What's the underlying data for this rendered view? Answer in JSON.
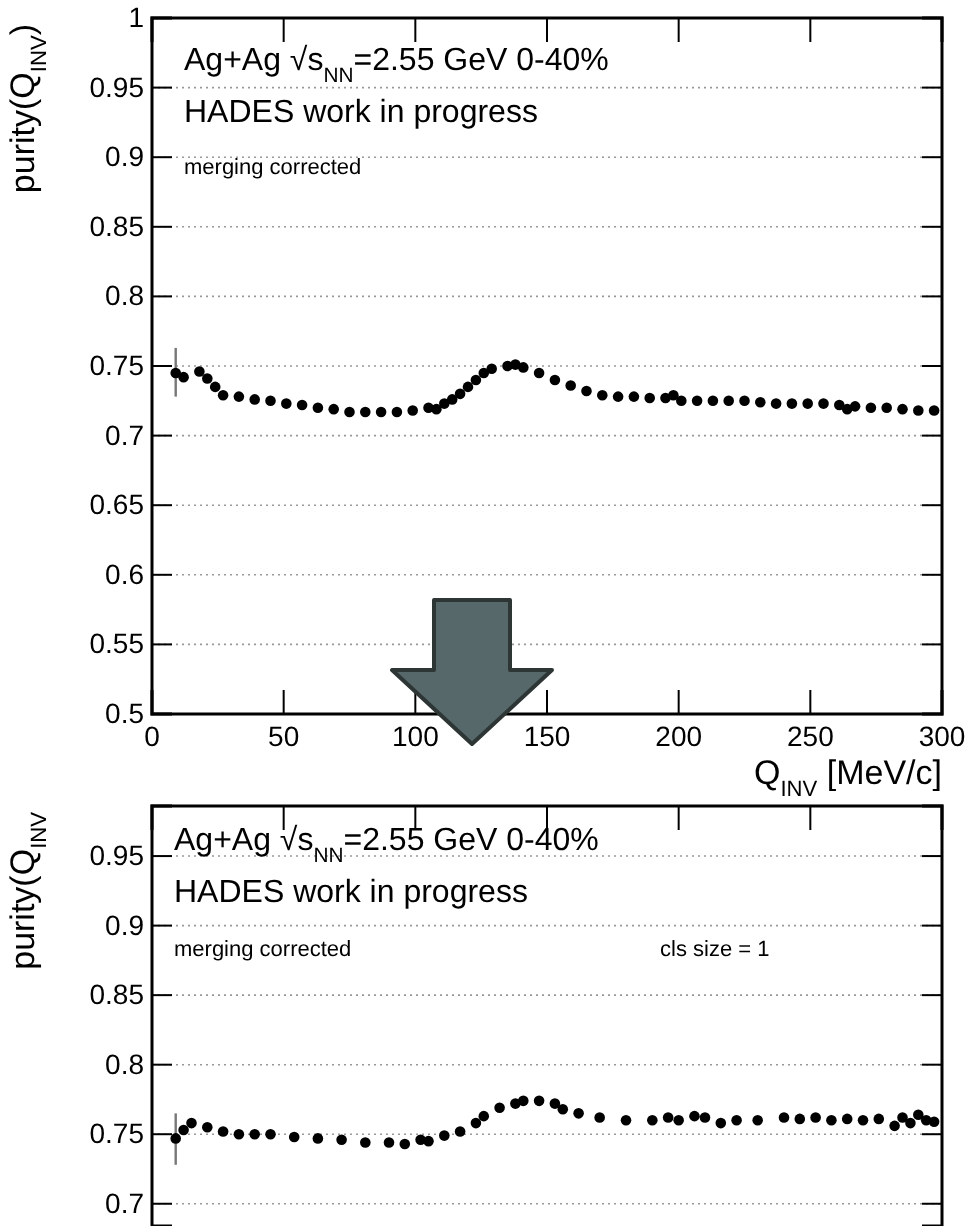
{
  "chart_data": [
    {
      "type": "scatter",
      "ylabel": "purity(Q$_{INV}$)",
      "xlabel": "Q$_{INV}$ [MeV/c]",
      "annotations": [
        "Ag+Ag √s$_{NN}$=2.55 GeV 0-40%",
        "HADES work in progress",
        "merging corrected"
      ],
      "xlim": [
        0,
        300
      ],
      "xticks": [
        0,
        50,
        100,
        150,
        200,
        250,
        300
      ],
      "ylim": [
        0.5,
        1
      ],
      "yticks": [
        0.5,
        0.55,
        0.6,
        0.65,
        0.7,
        0.75,
        0.8,
        0.85,
        0.9,
        0.95,
        1
      ],
      "grid": "y",
      "marker": "circle",
      "series": [
        {
          "color": "#000000",
          "x": [
            9,
            12,
            18,
            21,
            24,
            27,
            33,
            39,
            45,
            51,
            57,
            63,
            69,
            75,
            81,
            87,
            93,
            99,
            105,
            108,
            111,
            114,
            117,
            120,
            123,
            126,
            129,
            135,
            138,
            141,
            147,
            153,
            159,
            165,
            171,
            177,
            183,
            189,
            195,
            198,
            201,
            207,
            213,
            219,
            225,
            231,
            237,
            243,
            249,
            255,
            261,
            264,
            267,
            273,
            279,
            285,
            291,
            297
          ],
          "values": [
            0.745,
            0.742,
            0.746,
            0.741,
            0.735,
            0.729,
            0.728,
            0.726,
            0.725,
            0.723,
            0.722,
            0.72,
            0.719,
            0.717,
            0.717,
            0.717,
            0.717,
            0.718,
            0.72,
            0.719,
            0.723,
            0.726,
            0.73,
            0.735,
            0.74,
            0.745,
            0.748,
            0.75,
            0.751,
            0.749,
            0.745,
            0.74,
            0.736,
            0.732,
            0.729,
            0.728,
            0.728,
            0.727,
            0.727,
            0.729,
            0.725,
            0.725,
            0.725,
            0.725,
            0.725,
            0.724,
            0.723,
            0.723,
            0.723,
            0.723,
            0.722,
            0.719,
            0.721,
            0.72,
            0.72,
            0.719,
            0.718,
            0.718
          ],
          "errors": [
            [
              0.728,
              0.763
            ],
            null,
            null,
            null,
            null,
            null,
            null,
            null,
            null,
            null,
            null,
            null,
            null,
            null,
            null,
            null,
            null,
            null,
            null,
            null,
            null,
            null,
            null,
            null,
            null,
            null,
            null,
            null,
            null,
            null,
            null,
            null,
            null,
            null,
            null,
            null,
            null,
            null,
            null,
            null,
            null,
            null,
            null,
            null,
            null,
            null,
            null,
            null,
            null,
            null,
            null,
            null,
            null,
            null,
            null,
            null,
            null,
            null
          ]
        }
      ]
    },
    {
      "type": "scatter",
      "ylabel": "purity(Q$_{INV}$",
      "annotations": [
        "Ag+Ag √s$_{NN}$=2.55 GeV 0-40%",
        "HADES work in progress",
        "merging corrected",
        "cls size = 1"
      ],
      "xlim": [
        0,
        300
      ],
      "xticks": [
        {
          "value": 0,
          "label": null
        },
        {
          "value": 50,
          "label": null
        },
        {
          "value": 100,
          "label": null
        },
        {
          "value": 150,
          "label": null
        },
        {
          "value": 200,
          "label": null
        },
        {
          "value": 250,
          "label": null
        },
        {
          "value": 300,
          "label": null
        }
      ],
      "ylim": [
        0.684,
        0.986
      ],
      "yticks": [
        0.7,
        0.75,
        0.8,
        0.85,
        0.9,
        0.95
      ],
      "tick_labels": "y",
      "grid": "y",
      "marker": "circle",
      "series": [
        {
          "color": "#000000",
          "x": [
            9,
            12,
            15,
            21,
            27,
            33,
            39,
            45,
            54,
            63,
            72,
            81,
            90,
            96,
            102,
            105,
            111,
            117,
            123,
            126,
            132,
            138,
            141,
            147,
            153,
            156,
            162,
            170,
            180,
            190,
            196,
            200,
            206,
            210,
            216,
            222,
            230,
            240,
            246,
            252,
            258,
            264,
            270,
            276,
            282,
            285,
            288,
            291,
            294,
            297
          ],
          "values": [
            0.747,
            0.753,
            0.758,
            0.755,
            0.752,
            0.75,
            0.75,
            0.75,
            0.748,
            0.747,
            0.746,
            0.744,
            0.744,
            0.743,
            0.746,
            0.745,
            0.749,
            0.752,
            0.758,
            0.763,
            0.769,
            0.772,
            0.774,
            0.774,
            0.772,
            0.768,
            0.765,
            0.762,
            0.76,
            0.76,
            0.762,
            0.76,
            0.763,
            0.762,
            0.758,
            0.76,
            0.76,
            0.762,
            0.761,
            0.762,
            0.76,
            0.761,
            0.76,
            0.761,
            0.756,
            0.762,
            0.758,
            0.764,
            0.76,
            0.759
          ],
          "errors": [
            [
              0.728,
              0.765
            ],
            null,
            null,
            null,
            null,
            null,
            null,
            null,
            null,
            null,
            null,
            null,
            null,
            null,
            null,
            null,
            null,
            null,
            null,
            null,
            null,
            null,
            null,
            null,
            null,
            null,
            null,
            null,
            null,
            null,
            null,
            null,
            null,
            null,
            null,
            null,
            null,
            null,
            null,
            null,
            null,
            null,
            null,
            null,
            null,
            null,
            null,
            null,
            null,
            null
          ]
        }
      ]
    }
  ]
}
